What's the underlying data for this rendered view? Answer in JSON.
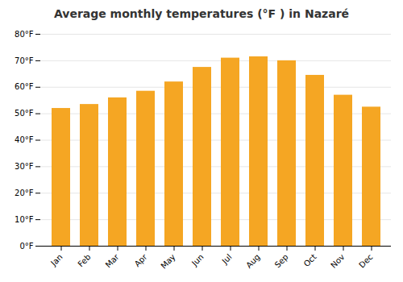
{
  "chart_data": {
    "type": "bar",
    "title": "Average monthly temperatures (°F ) in Nazaré",
    "categories": [
      "Jan",
      "Feb",
      "Mar",
      "Apr",
      "May",
      "Jun",
      "Jul",
      "Aug",
      "Sep",
      "Oct",
      "Nov",
      "Dec"
    ],
    "values": [
      52,
      53.5,
      56,
      58.5,
      62,
      67.5,
      71,
      71.5,
      70,
      64.5,
      57,
      52.5
    ],
    "color": "#F5A623",
    "ylim": [
      0,
      80
    ],
    "yticks": [
      {
        "value": 0,
        "label": "0°F"
      },
      {
        "value": 10,
        "label": "10°F"
      },
      {
        "value": 20,
        "label": "20°F"
      },
      {
        "value": 30,
        "label": "30°F"
      },
      {
        "value": 40,
        "label": "40°F"
      },
      {
        "value": 50,
        "label": "50°F"
      },
      {
        "value": 60,
        "label": "60°F"
      },
      {
        "value": 70,
        "label": "70°F"
      },
      {
        "value": 80,
        "label": "80°F"
      }
    ],
    "grid": true
  }
}
